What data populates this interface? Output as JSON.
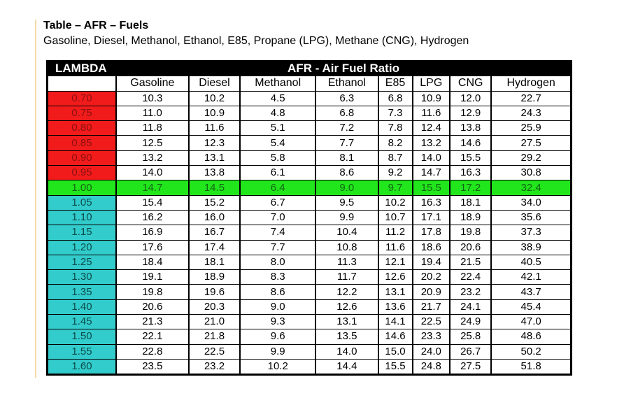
{
  "header": {
    "title": "Table – AFR – Fuels",
    "subtitle": "Gasoline, Diesel, Methanol, Ethanol, E85, Propane (LPG), Methane (CNG), Hydrogen"
  },
  "table": {
    "corner": "LAMBDA",
    "group_header": "AFR - Air Fuel Ratio",
    "columns": [
      "Gasoline",
      "Diesel",
      "Methanol",
      "Ethanol",
      "E85",
      "LPG",
      "CNG",
      "Hydrogen"
    ],
    "rows": [
      [
        "0.70",
        "10.3",
        "10.2",
        "4.5",
        "6.3",
        "6.8",
        "10.9",
        "12.0",
        "22.7"
      ],
      [
        "0.75",
        "11.0",
        "10.9",
        "4.8",
        "6.8",
        "7.3",
        "11.6",
        "12.9",
        "24.3"
      ],
      [
        "0.80",
        "11.8",
        "11.6",
        "5.1",
        "7.2",
        "7.8",
        "12.4",
        "13.8",
        "25.9"
      ],
      [
        "0.85",
        "12.5",
        "12.3",
        "5.4",
        "7.7",
        "8.2",
        "13.2",
        "14.6",
        "27.5"
      ],
      [
        "0.90",
        "13.2",
        "13.1",
        "5.8",
        "8.1",
        "8.7",
        "14.0",
        "15.5",
        "29.2"
      ],
      [
        "0.95",
        "14.0",
        "13.8",
        "6.1",
        "8.6",
        "9.2",
        "14.7",
        "16.3",
        "30.8"
      ],
      [
        "1.00",
        "14.7",
        "14.5",
        "6.4",
        "9.0",
        "9.7",
        "15.5",
        "17.2",
        "32.4"
      ],
      [
        "1.05",
        "15.4",
        "15.2",
        "6.7",
        "9.5",
        "10.2",
        "16.3",
        "18.1",
        "34.0"
      ],
      [
        "1.10",
        "16.2",
        "16.0",
        "7.0",
        "9.9",
        "10.7",
        "17.1",
        "18.9",
        "35.6"
      ],
      [
        "1.15",
        "16.9",
        "16.7",
        "7.4",
        "10.4",
        "11.2",
        "17.8",
        "19.8",
        "37.3"
      ],
      [
        "1.20",
        "17.6",
        "17.4",
        "7.7",
        "10.8",
        "11.6",
        "18.6",
        "20.6",
        "38.9"
      ],
      [
        "1.25",
        "18.4",
        "18.1",
        "8.0",
        "11.3",
        "12.1",
        "19.4",
        "21.5",
        "40.5"
      ],
      [
        "1.30",
        "19.1",
        "18.9",
        "8.3",
        "11.7",
        "12.6",
        "20.2",
        "22.4",
        "42.1"
      ],
      [
        "1.35",
        "19.8",
        "19.6",
        "8.6",
        "12.2",
        "13.1",
        "20.9",
        "23.2",
        "43.7"
      ],
      [
        "1.40",
        "20.6",
        "20.3",
        "9.0",
        "12.6",
        "13.6",
        "21.7",
        "24.1",
        "45.4"
      ],
      [
        "1.45",
        "21.3",
        "21.0",
        "9.3",
        "13.1",
        "14.1",
        "22.5",
        "24.9",
        "47.0"
      ],
      [
        "1.50",
        "22.1",
        "21.8",
        "9.6",
        "13.5",
        "14.6",
        "23.3",
        "25.8",
        "48.6"
      ],
      [
        "1.55",
        "22.8",
        "22.5",
        "9.9",
        "14.0",
        "15.0",
        "24.0",
        "26.7",
        "50.2"
      ],
      [
        "1.60",
        "23.5",
        "23.2",
        "10.2",
        "14.4",
        "15.5",
        "24.8",
        "27.5",
        "51.8"
      ]
    ]
  }
}
